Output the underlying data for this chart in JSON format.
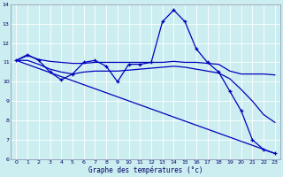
{
  "title": "Graphe des températures (°c)",
  "background_color": "#cceef0",
  "grid_color": "#ffffff",
  "line_color": "#0000bb",
  "xlim": [
    -0.5,
    23.5
  ],
  "ylim": [
    6,
    14
  ],
  "yticks": [
    6,
    7,
    8,
    9,
    10,
    11,
    12,
    13,
    14
  ],
  "xticks": [
    0,
    1,
    2,
    3,
    4,
    5,
    6,
    7,
    8,
    9,
    10,
    11,
    12,
    13,
    14,
    15,
    16,
    17,
    18,
    19,
    20,
    21,
    22,
    23
  ],
  "line1_x": [
    0,
    1,
    2,
    3,
    4,
    5,
    6,
    7,
    8,
    9,
    10,
    11,
    12,
    13,
    14,
    15,
    16,
    17,
    18,
    19,
    20,
    21,
    22,
    23
  ],
  "line1_y": [
    11.1,
    11.4,
    11.1,
    10.5,
    10.1,
    10.4,
    11.0,
    11.1,
    10.8,
    10.0,
    10.9,
    10.9,
    11.0,
    13.1,
    13.7,
    13.1,
    11.7,
    11.0,
    10.5,
    9.5,
    8.5,
    7.0,
    6.5,
    6.3
  ],
  "line2_x": [
    0,
    1,
    2,
    3,
    4,
    5,
    6,
    7,
    8,
    9,
    10,
    11,
    12,
    13,
    14,
    15,
    16,
    17,
    18,
    19,
    20,
    21,
    22,
    23
  ],
  "line2_y": [
    11.1,
    11.35,
    11.15,
    11.05,
    11.0,
    10.95,
    10.95,
    11.0,
    11.0,
    11.0,
    11.0,
    11.0,
    11.0,
    11.0,
    11.05,
    11.0,
    11.0,
    10.95,
    10.9,
    10.55,
    10.4,
    10.4,
    10.4,
    10.35
  ],
  "line3_x": [
    0,
    1,
    2,
    3,
    4,
    5,
    6,
    7,
    8,
    9,
    10,
    11,
    12,
    13,
    14,
    15,
    16,
    17,
    18,
    19,
    20,
    21,
    22,
    23
  ],
  "line3_y": [
    11.1,
    11.1,
    10.9,
    10.65,
    10.5,
    10.4,
    10.5,
    10.55,
    10.55,
    10.55,
    10.6,
    10.65,
    10.7,
    10.75,
    10.8,
    10.75,
    10.65,
    10.55,
    10.45,
    10.15,
    9.6,
    9.0,
    8.3,
    7.9
  ],
  "line4_x": [
    0,
    23
  ],
  "line4_y": [
    11.1,
    6.3
  ]
}
